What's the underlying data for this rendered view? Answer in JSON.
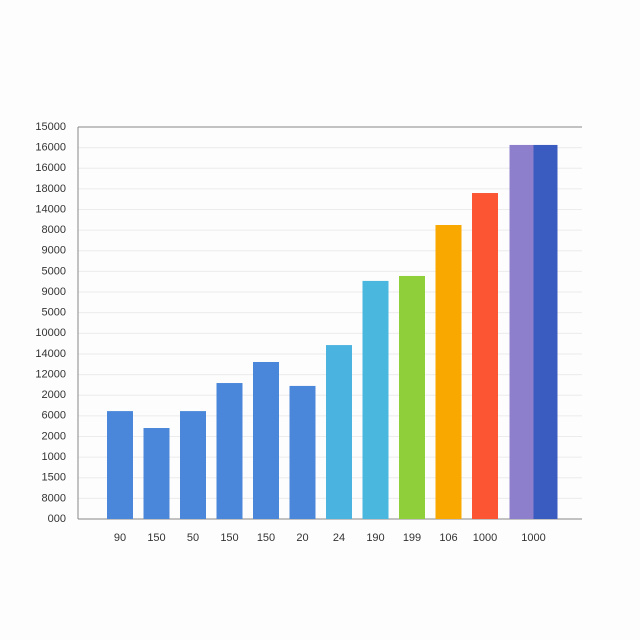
{
  "chart_data": {
    "type": "bar",
    "categories": [
      "90",
      "150",
      "50",
      "150",
      "150",
      "20",
      "24",
      "190",
      "199",
      "106",
      "1000",
      null,
      "1000"
    ],
    "values": [
      5.23,
      4.41,
      5.23,
      6.59,
      7.61,
      6.45,
      8.43,
      11.54,
      11.78,
      14.25,
      15.8,
      18.13,
      18.13
    ],
    "colors": [
      "#4a86d9",
      "#4a86d9",
      "#4a86d9",
      "#4a86d9",
      "#4a86d9",
      "#4a86d9",
      "#4ab3e0",
      "#4ab8de",
      "#8fcf3a",
      "#f9a800",
      "#fb5533",
      "#8e7fcc",
      "#3a5bbf"
    ],
    "ylim": [
      0,
      19
    ],
    "yticks": [
      {
        "value": 0,
        "label": "000"
      },
      {
        "value": 1,
        "label": "8000"
      },
      {
        "value": 2,
        "label": "1500"
      },
      {
        "value": 3,
        "label": "1000"
      },
      {
        "value": 4,
        "label": "2000"
      },
      {
        "value": 5,
        "label": "6000"
      },
      {
        "value": 6,
        "label": "2000"
      },
      {
        "value": 7,
        "label": "12000"
      },
      {
        "value": 8,
        "label": "14000"
      },
      {
        "value": 9,
        "label": "10000"
      },
      {
        "value": 10,
        "label": "5000"
      },
      {
        "value": 11,
        "label": "9000"
      },
      {
        "value": 12,
        "label": "5000"
      },
      {
        "value": 13,
        "label": "9000"
      },
      {
        "value": 14,
        "label": "8000"
      },
      {
        "value": 15,
        "label": "14000"
      },
      {
        "value": 16,
        "label": "18000"
      },
      {
        "value": 17,
        "label": "16000"
      },
      {
        "value": 18,
        "label": "16000"
      },
      {
        "value": 19,
        "label": "15000"
      }
    ],
    "grid": true
  }
}
